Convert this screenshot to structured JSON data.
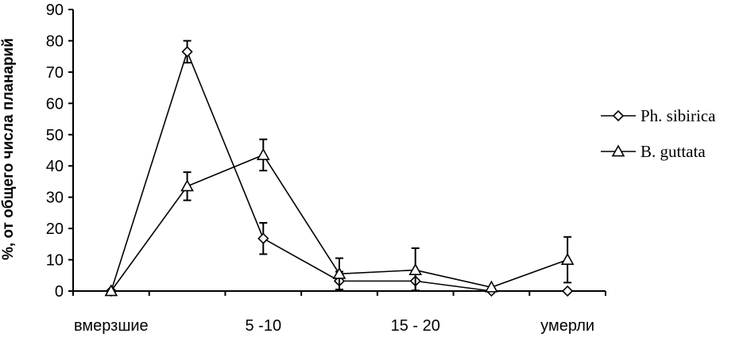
{
  "chart_data": {
    "type": "line",
    "title": "",
    "xlabel": "",
    "ylabel": "%,  от общего числа планарий",
    "ylim": [
      0,
      90
    ],
    "yticks": [
      0,
      10,
      20,
      30,
      40,
      50,
      60,
      70,
      80,
      90
    ],
    "x_points": 7,
    "category_labels": [
      {
        "index": 0,
        "label": "вмерзшие"
      },
      {
        "index": 2,
        "label": "5 -10"
      },
      {
        "index": 4,
        "label": "15 - 20"
      },
      {
        "index": 6,
        "label": "умерли"
      }
    ],
    "legend_position": "right",
    "series": [
      {
        "name": "Ph. sibirica",
        "marker": "diamond",
        "values": [
          0,
          76.5,
          16.8,
          3.2,
          3.2,
          0,
          0
        ],
        "errors": [
          0,
          3.5,
          5,
          3,
          3,
          0,
          0
        ]
      },
      {
        "name": "B. guttata",
        "marker": "triangle",
        "values": [
          0,
          33.5,
          43.5,
          5.5,
          6.7,
          1.2,
          10
        ],
        "errors": [
          0,
          4.5,
          5,
          5,
          7,
          0,
          7.3
        ]
      }
    ]
  }
}
